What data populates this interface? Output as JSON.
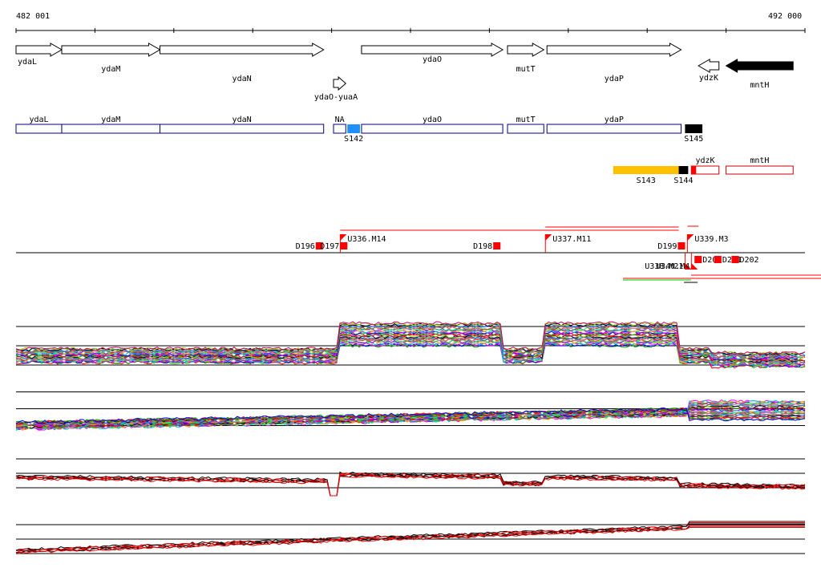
{
  "ruler": {
    "start_label": "482 001",
    "end_label": "492 000",
    "start": 482001,
    "end": 492000
  },
  "genes": [
    {
      "name": "ydaL",
      "start": 482001,
      "end": 482580,
      "strand": "+",
      "fill": "#ffffff"
    },
    {
      "name": "ydaM",
      "start": 482580,
      "end": 483825,
      "strand": "+",
      "fill": "#ffffff"
    },
    {
      "name": "ydaN",
      "start": 483825,
      "end": 485900,
      "strand": "+",
      "fill": "#ffffff"
    },
    {
      "name": "ydaO-yuaA",
      "start": 486025,
      "end": 486180,
      "strand": "+",
      "fill": "#ffffff"
    },
    {
      "name": "ydaO",
      "start": 486380,
      "end": 488170,
      "strand": "+",
      "fill": "#ffffff"
    },
    {
      "name": "mutT",
      "start": 488230,
      "end": 488690,
      "strand": "+",
      "fill": "#ffffff"
    },
    {
      "name": "ydaP",
      "start": 488730,
      "end": 490430,
      "strand": "+",
      "fill": "#ffffff"
    },
    {
      "name": "ydzK",
      "start": 490650,
      "end": 490910,
      "strand": "-",
      "fill": "#ffffff"
    },
    {
      "name": "mntH",
      "start": 491000,
      "end": 491850,
      "strand": "-",
      "fill": "#000000"
    }
  ],
  "transcripts": [
    {
      "name": "ydaL",
      "start": 482001,
      "end": 482580
    },
    {
      "name": "ydaM",
      "start": 482580,
      "end": 483825
    },
    {
      "name": "ydaN",
      "start": 483825,
      "end": 485900
    },
    {
      "name": "NA",
      "start": 486025,
      "end": 486180
    },
    {
      "name": "ydaO",
      "start": 486380,
      "end": 488170
    },
    {
      "name": "mutT",
      "start": 488230,
      "end": 488690
    },
    {
      "name": "ydaP",
      "start": 488730,
      "end": 490430
    }
  ],
  "segments": [
    {
      "name": "S142",
      "start": 486200,
      "end": 486360,
      "color": "#1e90ff"
    },
    {
      "name": "S145",
      "start": 490480,
      "end": 490700,
      "color": "#000000"
    },
    {
      "name": "S143",
      "start": 489570,
      "end": 490400,
      "color": "#ffc000"
    },
    {
      "name": "S144",
      "start": 490400,
      "end": 490520,
      "color": "#000000"
    }
  ],
  "red_boxes": [
    {
      "name": "ydzK",
      "start": 490560,
      "end": 490910
    },
    {
      "name": "mntH",
      "start": 491000,
      "end": 491850
    }
  ],
  "markers_top": [
    {
      "name": "D196",
      "pos": 485850
    },
    {
      "name": "D197",
      "pos": 486160
    },
    {
      "name": "U336.M14",
      "pos": 486110
    },
    {
      "name": "D198",
      "pos": 488100
    },
    {
      "name": "U337.M11",
      "pos": 488710
    },
    {
      "name": "D199",
      "pos": 490440
    },
    {
      "name": "U339.M3",
      "pos": 490510
    }
  ],
  "markers_bottom": [
    {
      "name": "U338.M21",
      "pos": 490480
    },
    {
      "name": "U340.M4",
      "pos": 490560
    },
    {
      "name": "D200",
      "pos": 490600
    },
    {
      "name": "D201",
      "pos": 490850
    },
    {
      "name": "D202",
      "pos": 491070
    }
  ],
  "profile_segments": [
    482001,
    485950,
    486100,
    488170,
    488700,
    490400,
    490600,
    490850,
    491050,
    492000
  ],
  "profile_levels_a": [
    0.45,
    0.05,
    0.85,
    0.3,
    0.95,
    0.2,
    0.3,
    0.35,
    0.25
  ],
  "colors": {
    "red": "#ff0000",
    "black": "#000000",
    "cyan": "#00ffff",
    "gray": "#a0a0a0"
  }
}
